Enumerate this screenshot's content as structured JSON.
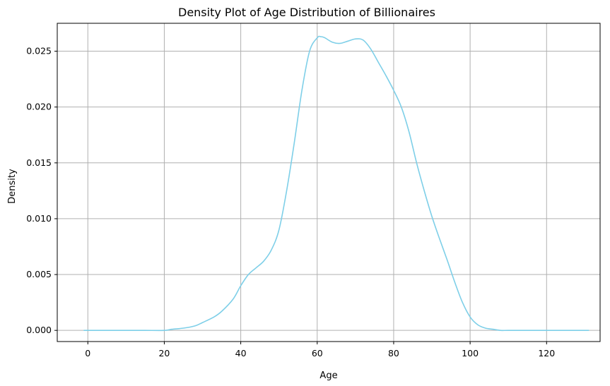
{
  "colors": {
    "series": "#7ecfe8",
    "grid": "#b0b0b0",
    "axis": "#000000"
  },
  "chart_data": {
    "type": "line",
    "title": "Density Plot of Age Distribution of Billionaires",
    "xlabel": "Age",
    "ylabel": "Density",
    "xlim": [
      -8,
      134
    ],
    "ylim": [
      -0.001,
      0.0275
    ],
    "x_ticks": [
      0,
      20,
      40,
      60,
      80,
      100,
      120
    ],
    "y_ticks": [
      0.0,
      0.005,
      0.01,
      0.015,
      0.02,
      0.025
    ],
    "x_tick_labels": [
      "0",
      "20",
      "40",
      "60",
      "80",
      "100",
      "120"
    ],
    "y_tick_labels": [
      "0.000",
      "0.005",
      "0.010",
      "0.015",
      "0.020",
      "0.025"
    ],
    "grid": true,
    "series": [
      {
        "x": [
          -1,
          5,
          10,
          15,
          20,
          22,
          25,
          28,
          30,
          33,
          35,
          38,
          40,
          42,
          44,
          46,
          48,
          50,
          52,
          54,
          56,
          58,
          60,
          61,
          62,
          64,
          66,
          68,
          70,
          72,
          74,
          76,
          78,
          80,
          82,
          84,
          86,
          88,
          90,
          92,
          94,
          96,
          98,
          100,
          102,
          104,
          106,
          108,
          110,
          115,
          120,
          125,
          131
        ],
        "y": [
          0.0,
          0.0,
          0.0,
          0.0,
          0.0,
          0.0001,
          0.0002,
          0.0004,
          0.0007,
          0.0012,
          0.0017,
          0.0028,
          0.004,
          0.005,
          0.0056,
          0.0062,
          0.0072,
          0.009,
          0.0125,
          0.0168,
          0.0215,
          0.025,
          0.0262,
          0.0263,
          0.0262,
          0.0258,
          0.0257,
          0.0259,
          0.0261,
          0.026,
          0.0252,
          0.024,
          0.0228,
          0.0215,
          0.02,
          0.0178,
          0.015,
          0.0125,
          0.0102,
          0.0082,
          0.0063,
          0.0043,
          0.0025,
          0.0012,
          0.0005,
          0.0002,
          0.0001,
          0.0,
          0.0,
          0.0,
          0.0,
          0.0,
          0.0
        ]
      }
    ]
  }
}
